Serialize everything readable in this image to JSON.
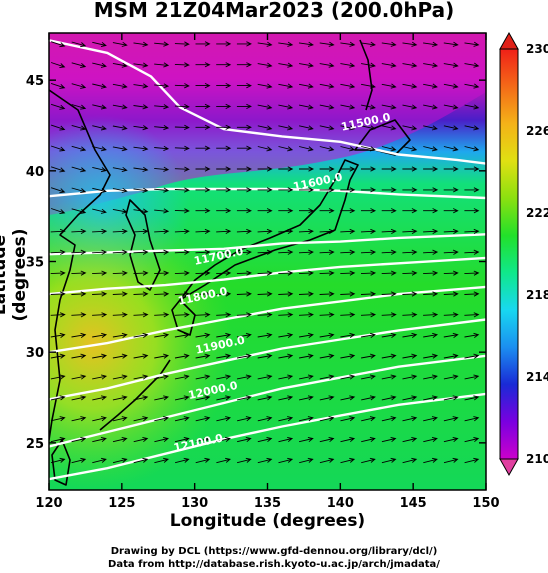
{
  "title": "MSM 21Z04Mar2023 (200.0hPa)",
  "axes": {
    "xlabel": "Longitude (degrees)",
    "ylabel": "Latitude  (degrees)",
    "x_ticks": [
      "120",
      "125",
      "130",
      "135",
      "140",
      "145",
      "150"
    ],
    "y_ticks": [
      "25",
      "30",
      "35",
      "40",
      "45"
    ],
    "x_range": [
      120,
      150
    ],
    "y_range": [
      22.4,
      47.6
    ]
  },
  "colorbar": {
    "labels": [
      "230",
      "226",
      "222",
      "218",
      "214",
      "210"
    ],
    "min": 210,
    "max": 230,
    "colors": [
      "#cc00cc",
      "#7a00e0",
      "#1a2ad6",
      "#1b8ff0",
      "#18d8f0",
      "#10e88a",
      "#22e02a",
      "#8be010",
      "#e0e012",
      "#f4b218",
      "#f46a18",
      "#f02018"
    ]
  },
  "contours": {
    "values": [
      "11500.0",
      "11600.0",
      "11700.0",
      "11800.0",
      "11900.0",
      "12000.0",
      "12100.0"
    ],
    "labels": [
      {
        "text": "11500.0",
        "lon": 141.8,
        "lat": 42.5
      },
      {
        "text": "11600.0",
        "lon": 138.5,
        "lat": 39.2
      },
      {
        "text": "11700.0",
        "lon": 131.7,
        "lat": 35.1
      },
      {
        "text": "11800.0",
        "lon": 130.6,
        "lat": 32.9
      },
      {
        "text": "11900.0",
        "lon": 131.8,
        "lat": 30.2
      },
      {
        "text": "12000.0",
        "lon": 131.3,
        "lat": 27.7
      },
      {
        "text": "12100.0",
        "lon": 130.3,
        "lat": 24.8
      }
    ]
  },
  "footer": {
    "line1": "Drawing by DCL (https://www.gfd-dennou.org/library/dcl/)",
    "line2": "Data from http://database.rish.kyoto-u.ac.jp/arch/jmadata/"
  }
}
